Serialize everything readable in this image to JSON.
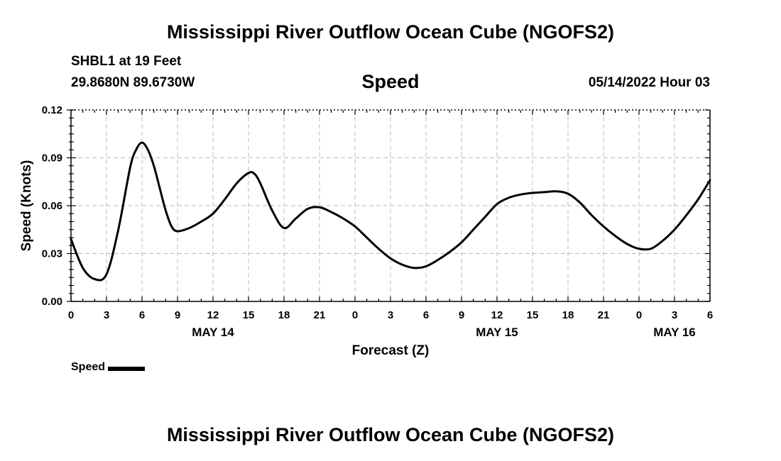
{
  "page": {
    "title": "Mississippi River Outflow Ocean Cube (NGOFS2)",
    "title_repeat": "Mississippi River Outflow Ocean Cube (NGOFS2)",
    "station": "SHBL1 at 19 Feet",
    "coordinates": "29.8680N  89.6730W",
    "chart_heading": "Speed",
    "timestamp": "05/14/2022 Hour 03"
  },
  "chart_data": {
    "type": "line",
    "title": "Speed",
    "xlabel": "Forecast (Z)",
    "ylabel": "Speed (Knots)",
    "xlim": [
      0,
      54
    ],
    "ylim": [
      0,
      0.12
    ],
    "grid": true,
    "y_ticks": [
      "0.00",
      "0.03",
      "0.06",
      "0.09",
      "0.12"
    ],
    "y_tick_values": [
      0,
      0.03,
      0.06,
      0.09,
      0.12
    ],
    "x_ticks": [
      {
        "hour": 0,
        "label": "0"
      },
      {
        "hour": 3,
        "label": "3"
      },
      {
        "hour": 6,
        "label": "6"
      },
      {
        "hour": 9,
        "label": "9"
      },
      {
        "hour": 12,
        "label": "12"
      },
      {
        "hour": 15,
        "label": "15"
      },
      {
        "hour": 18,
        "label": "18"
      },
      {
        "hour": 21,
        "label": "21"
      },
      {
        "hour": 24,
        "label": "0"
      },
      {
        "hour": 27,
        "label": "3"
      },
      {
        "hour": 30,
        "label": "6"
      },
      {
        "hour": 33,
        "label": "9"
      },
      {
        "hour": 36,
        "label": "12"
      },
      {
        "hour": 39,
        "label": "15"
      },
      {
        "hour": 42,
        "label": "18"
      },
      {
        "hour": 45,
        "label": "21"
      },
      {
        "hour": 48,
        "label": "0"
      },
      {
        "hour": 51,
        "label": "3"
      },
      {
        "hour": 54,
        "label": "6"
      }
    ],
    "date_labels": [
      {
        "hour": 12,
        "label": "MAY 14"
      },
      {
        "hour": 36,
        "label": "MAY 15"
      },
      {
        "hour": 51,
        "label": "MAY 16"
      }
    ],
    "legend": {
      "position": "bottom-left",
      "entries": [
        "Speed"
      ]
    },
    "series": [
      {
        "name": "Speed",
        "x": [
          0,
          1,
          2,
          3,
          4,
          5,
          5.5,
          6,
          6.5,
          7,
          7.5,
          8,
          8.5,
          9,
          10,
          11,
          12,
          13,
          14,
          15,
          15.5,
          16,
          17,
          18,
          19,
          20,
          21,
          22,
          23,
          24,
          25,
          26,
          27,
          28,
          29,
          30,
          31,
          32,
          33,
          34,
          35,
          36,
          37,
          38,
          39,
          40,
          41,
          42,
          43,
          44,
          45,
          46,
          47,
          48,
          49,
          50,
          51,
          52,
          53,
          54
        ],
        "y": [
          0.039,
          0.021,
          0.014,
          0.017,
          0.045,
          0.084,
          0.095,
          0.0995,
          0.095,
          0.085,
          0.071,
          0.057,
          0.047,
          0.044,
          0.046,
          0.05,
          0.055,
          0.064,
          0.074,
          0.0805,
          0.08,
          0.074,
          0.057,
          0.046,
          0.052,
          0.058,
          0.059,
          0.056,
          0.052,
          0.047,
          0.04,
          0.033,
          0.027,
          0.023,
          0.021,
          0.022,
          0.026,
          0.031,
          0.037,
          0.045,
          0.053,
          0.061,
          0.065,
          0.067,
          0.068,
          0.0685,
          0.069,
          0.0675,
          0.062,
          0.054,
          0.047,
          0.041,
          0.036,
          0.033,
          0.033,
          0.038,
          0.045,
          0.054,
          0.064,
          0.076
        ]
      }
    ]
  }
}
